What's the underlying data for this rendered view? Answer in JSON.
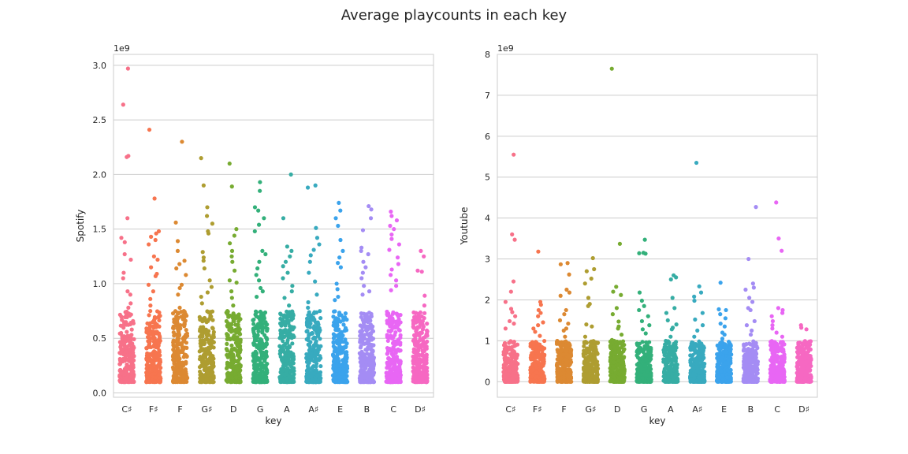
{
  "figure": {
    "title": "Average playcounts in each key",
    "palette": [
      "#f77189",
      "#f7754f",
      "#dc8932",
      "#ae9d31",
      "#77ab31",
      "#33b07a",
      "#36ada4",
      "#38aabf",
      "#3ba3ec",
      "#a48cf4",
      "#e866f4",
      "#f668c2"
    ]
  },
  "chart_data": [
    {
      "type": "scatter",
      "subtype": "strip",
      "title": "",
      "xlabel": "key",
      "ylabel": "Spotify",
      "offset_label": "1e9",
      "categories": [
        "C♯",
        "F♯",
        "F",
        "G♯",
        "D",
        "G",
        "A",
        "A♯",
        "E",
        "B",
        "C",
        "D♯"
      ],
      "ylim": [
        -0.04,
        3.1
      ],
      "yticks": [
        0.0,
        0.5,
        1.0,
        1.5,
        2.0,
        2.5,
        3.0
      ],
      "ytick_labels": [
        "0.0",
        "0.5",
        "1.0",
        "1.5",
        "2.0",
        "2.5",
        "3.0"
      ],
      "grid": "y",
      "point_scale_note": "values in units of 1e9",
      "notable_points": [
        {
          "category": "C♯",
          "values": [
            2.97,
            2.64,
            2.17,
            2.16,
            1.6,
            1.42,
            1.38,
            1.27,
            1.22,
            1.1,
            1.05,
            0.93,
            0.9,
            0.82,
            0.78
          ]
        },
        {
          "category": "F♯",
          "values": [
            2.41,
            1.78,
            1.48,
            1.46,
            1.43,
            1.4,
            1.36,
            1.25,
            1.22,
            1.15,
            1.09,
            1.07,
            0.99,
            0.93,
            0.86,
            0.8,
            0.75
          ]
        },
        {
          "category": "F",
          "values": [
            2.3,
            1.56,
            1.39,
            1.3,
            1.21,
            1.18,
            1.14,
            1.08,
            0.99,
            0.96,
            0.9,
            0.78,
            0.75
          ]
        },
        {
          "category": "G♯",
          "values": [
            2.15,
            1.9,
            1.7,
            1.62,
            1.55,
            1.48,
            1.46,
            1.29,
            1.24,
            1.21,
            1.14,
            1.03,
            0.97,
            0.92,
            0.88,
            0.82
          ]
        },
        {
          "category": "D",
          "values": [
            2.1,
            1.89,
            1.5,
            1.44,
            1.37,
            1.3,
            1.25,
            1.2,
            1.12,
            1.03,
            1.01,
            0.93,
            0.87,
            0.8
          ]
        },
        {
          "category": "G",
          "values": [
            1.93,
            1.85,
            1.7,
            1.67,
            1.6,
            1.54,
            1.48,
            1.3,
            1.27,
            1.2,
            1.14,
            1.08,
            1.03,
            0.96,
            0.93,
            0.88
          ]
        },
        {
          "category": "A",
          "values": [
            2.0,
            1.6,
            1.34,
            1.3,
            1.25,
            1.2,
            1.16,
            1.1,
            1.05,
            0.98,
            0.93,
            0.87,
            0.8
          ]
        },
        {
          "category": "A♯",
          "values": [
            1.9,
            1.88,
            1.51,
            1.42,
            1.36,
            1.31,
            1.26,
            1.2,
            1.1,
            1.02,
            0.9,
            0.83,
            0.78
          ]
        },
        {
          "category": "E",
          "values": [
            1.74,
            1.67,
            1.6,
            1.53,
            1.4,
            1.3,
            1.24,
            1.19,
            1.15,
            1.0,
            0.95,
            0.88,
            0.85
          ]
        },
        {
          "category": "B",
          "values": [
            1.71,
            1.68,
            1.6,
            1.49,
            1.33,
            1.3,
            1.27,
            1.2,
            1.15,
            1.1,
            1.05,
            0.98,
            0.93,
            0.9
          ]
        },
        {
          "category": "C",
          "values": [
            1.66,
            1.62,
            1.58,
            1.53,
            1.5,
            1.45,
            1.41,
            1.36,
            1.31,
            1.24,
            1.18,
            1.13,
            1.08,
            1.03,
            0.98,
            0.94
          ]
        },
        {
          "category": "D♯",
          "values": [
            1.3,
            1.25,
            1.12,
            1.11,
            0.89,
            0.8,
            0.73,
            0.7,
            0.68,
            0.65
          ]
        }
      ],
      "bulk_range": [
        0.1,
        0.75
      ]
    },
    {
      "type": "scatter",
      "subtype": "strip",
      "title": "",
      "xlabel": "key",
      "ylabel": "Youtube",
      "offset_label": "1e9",
      "categories": [
        "C♯",
        "F♯",
        "F",
        "G♯",
        "D",
        "G",
        "A",
        "A♯",
        "E",
        "B",
        "C",
        "D♯"
      ],
      "ylim": [
        -0.38,
        8.0
      ],
      "yticks": [
        0,
        1,
        2,
        3,
        4,
        5,
        6,
        7,
        8
      ],
      "ytick_labels": [
        "0",
        "1",
        "2",
        "3",
        "4",
        "5",
        "6",
        "7",
        "8"
      ],
      "grid": "y",
      "point_scale_note": "values in units of 1e9",
      "notable_points": [
        {
          "category": "C♯",
          "values": [
            5.55,
            3.6,
            3.47,
            2.45,
            2.2,
            1.95,
            1.78,
            1.7,
            1.6,
            1.48,
            1.42,
            1.3
          ]
        },
        {
          "category": "F♯",
          "values": [
            3.18,
            1.95,
            1.88,
            1.75,
            1.68,
            1.6,
            1.45,
            1.38,
            1.3,
            1.22,
            1.12
          ]
        },
        {
          "category": "F",
          "values": [
            2.9,
            2.87,
            2.62,
            2.25,
            2.18,
            2.1,
            1.75,
            1.65,
            1.5,
            1.42,
            1.3,
            1.25,
            1.1
          ]
        },
        {
          "category": "G♯",
          "values": [
            3.02,
            2.75,
            2.7,
            2.52,
            2.4,
            2.05,
            1.9,
            1.85,
            1.4,
            1.35,
            1.1
          ]
        },
        {
          "category": "D",
          "values": [
            7.65,
            3.37,
            2.32,
            2.2,
            2.12,
            1.8,
            1.65,
            1.47,
            1.35,
            1.3,
            1.15,
            1.02
          ]
        },
        {
          "category": "G",
          "values": [
            3.47,
            3.15,
            3.14,
            3.13,
            2.18,
            1.98,
            1.85,
            1.75,
            1.6,
            1.48,
            1.38,
            1.28,
            1.18
          ]
        },
        {
          "category": "A",
          "values": [
            2.6,
            2.55,
            2.5,
            2.05,
            1.8,
            1.68,
            1.5,
            1.4,
            1.32,
            1.28,
            1.1
          ]
        },
        {
          "category": "A♯",
          "values": [
            5.35,
            2.33,
            2.18,
            2.08,
            1.98,
            1.68,
            1.52,
            1.38,
            1.25,
            1.1
          ]
        },
        {
          "category": "E",
          "values": [
            2.42,
            1.77,
            1.75,
            1.65,
            1.55,
            1.42,
            1.35,
            1.2,
            1.15,
            1.05
          ]
        },
        {
          "category": "B",
          "values": [
            4.27,
            3.0,
            2.4,
            2.3,
            2.25,
            2.05,
            1.95,
            1.8,
            1.75,
            1.48,
            1.38,
            1.25,
            1.15
          ]
        },
        {
          "category": "C",
          "values": [
            4.38,
            3.5,
            3.2,
            1.8,
            1.75,
            1.68,
            1.6,
            1.48,
            1.38,
            1.3,
            1.2,
            1.1
          ]
        },
        {
          "category": "D♯",
          "values": [
            1.38,
            1.32,
            1.28,
            0.95,
            0.94,
            0.72,
            0.6
          ]
        }
      ],
      "bulk_range": [
        0.0,
        1.0
      ]
    }
  ]
}
